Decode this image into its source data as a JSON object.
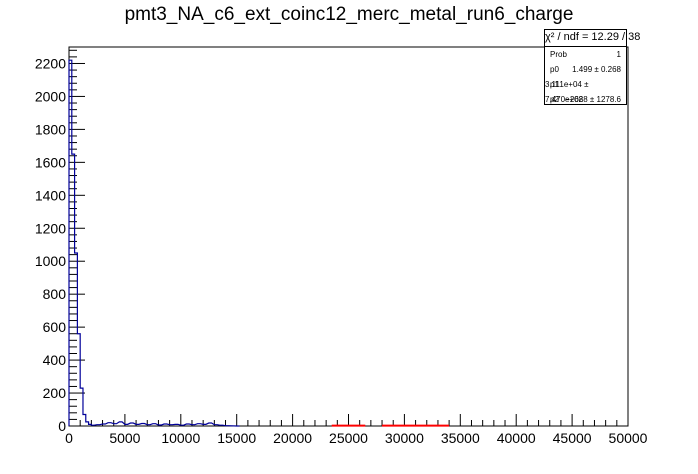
{
  "chart_data": {
    "type": "histogram",
    "title": "pmt3_NA_c6_ext_coinc12_merc_metal_run6_charge",
    "xlabel": "",
    "ylabel": "",
    "xlim": [
      0,
      50000
    ],
    "ylim": [
      0,
      2300
    ],
    "x_ticks": [
      0,
      5000,
      10000,
      15000,
      20000,
      25000,
      30000,
      35000,
      40000,
      45000,
      50000
    ],
    "y_ticks": [
      0,
      200,
      400,
      600,
      800,
      1000,
      1200,
      1400,
      1600,
      1800,
      2000,
      2200
    ],
    "x_tick_labels": [
      "0",
      "5000",
      "10000",
      "15000",
      "20000",
      "25000",
      "30000",
      "35000",
      "40000",
      "45000",
      "50000"
    ],
    "y_tick_labels": [
      "0",
      "200",
      "400",
      "600",
      "800",
      "1000",
      "1200",
      "1400",
      "1600",
      "1800",
      "2000",
      "2200"
    ],
    "grid": false,
    "histogram": {
      "color": "#000099",
      "bin_width": 250,
      "points": [
        [
          0,
          2220
        ],
        [
          250,
          1650
        ],
        [
          500,
          1050
        ],
        [
          750,
          560
        ],
        [
          1000,
          230
        ],
        [
          1250,
          70
        ],
        [
          1500,
          25
        ],
        [
          1750,
          10
        ],
        [
          2000,
          5
        ],
        [
          2500,
          8
        ],
        [
          3000,
          12
        ],
        [
          3500,
          20
        ],
        [
          4000,
          14
        ],
        [
          4500,
          25
        ],
        [
          5000,
          10
        ],
        [
          5500,
          18
        ],
        [
          6000,
          10
        ],
        [
          6500,
          15
        ],
        [
          7000,
          8
        ],
        [
          7500,
          14
        ],
        [
          8000,
          6
        ],
        [
          8500,
          12
        ],
        [
          9000,
          8
        ],
        [
          9500,
          10
        ],
        [
          10000,
          5
        ],
        [
          10500,
          12
        ],
        [
          11000,
          8
        ],
        [
          11500,
          14
        ],
        [
          12000,
          10
        ],
        [
          12500,
          18
        ],
        [
          13000,
          8
        ],
        [
          13500,
          5
        ],
        [
          14000,
          2
        ],
        [
          15000,
          0
        ]
      ]
    },
    "fit": {
      "color": "#ff0000",
      "segments": [
        [
          23500,
          26500
        ],
        [
          28000,
          34000
        ]
      ],
      "value": 2
    },
    "stats": {
      "header": "χ² / ndf = 12.29 / 38",
      "rows": [
        {
          "name": "Prob",
          "value": "1"
        },
        {
          "name": "p0",
          "value": "1.499 ± 0.268"
        },
        {
          "name": "p1",
          "value": "3.111e+04 ± 7.470e+02"
        },
        {
          "name": "p2",
          "value": "−2688 ± 1278.6"
        }
      ]
    }
  }
}
